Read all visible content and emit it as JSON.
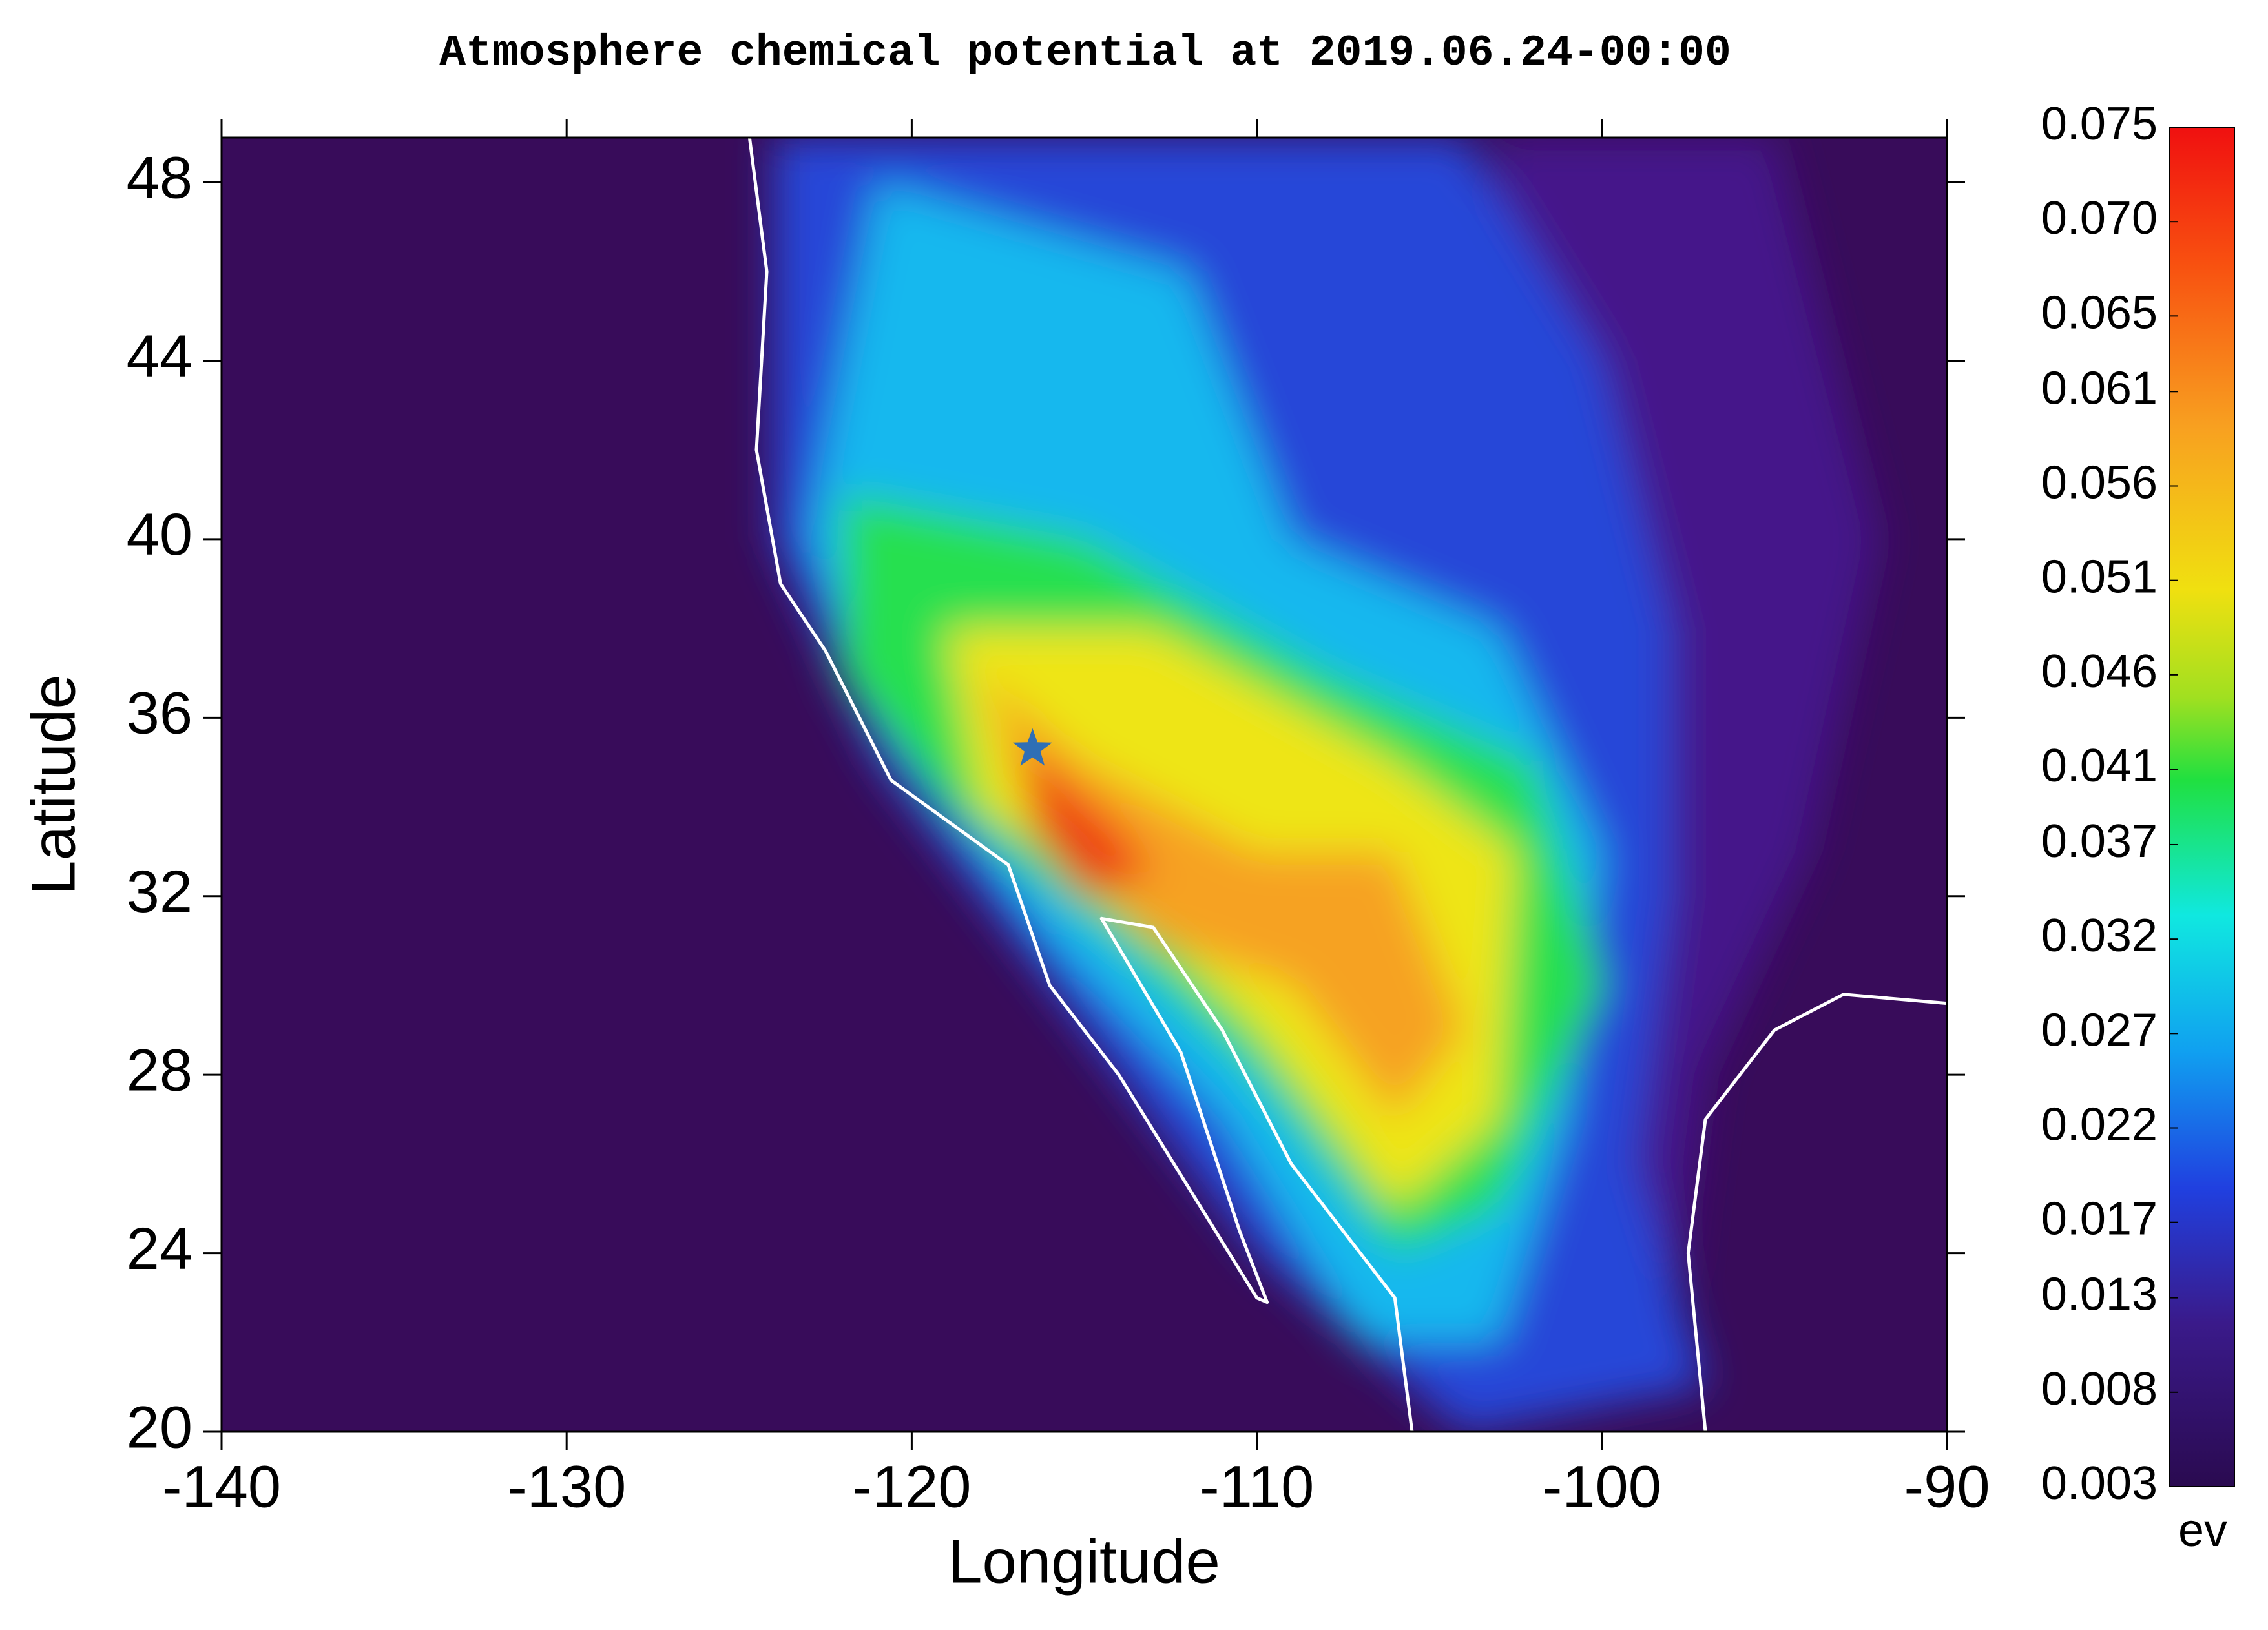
{
  "chart_data": {
    "type": "map",
    "title": "Atmosphere chemical potential at 2019.06.24-00:00",
    "x_label": "Longitude",
    "y_label": "Latitude",
    "xlim": [
      -140,
      -90
    ],
    "xticks": [
      -140,
      -130,
      -120,
      -110,
      -100,
      -90
    ],
    "ylim": [
      20,
      49
    ],
    "yticks": [
      20,
      24,
      28,
      32,
      36,
      40,
      44,
      48
    ],
    "colorbar": {
      "unit": "ev",
      "lim": [
        0.003,
        0.075
      ],
      "ticks": [
        0.003,
        0.008,
        0.013,
        0.017,
        0.022,
        0.027,
        0.032,
        0.037,
        0.041,
        0.046,
        0.051,
        0.056,
        0.061,
        0.065,
        {
          "value": 0.07,
          "label": "0.070"
        },
        0.075
      ]
    },
    "marker": {
      "x": -116.5,
      "y": 35.3,
      "color": "#2f6fb5"
    }
  }
}
